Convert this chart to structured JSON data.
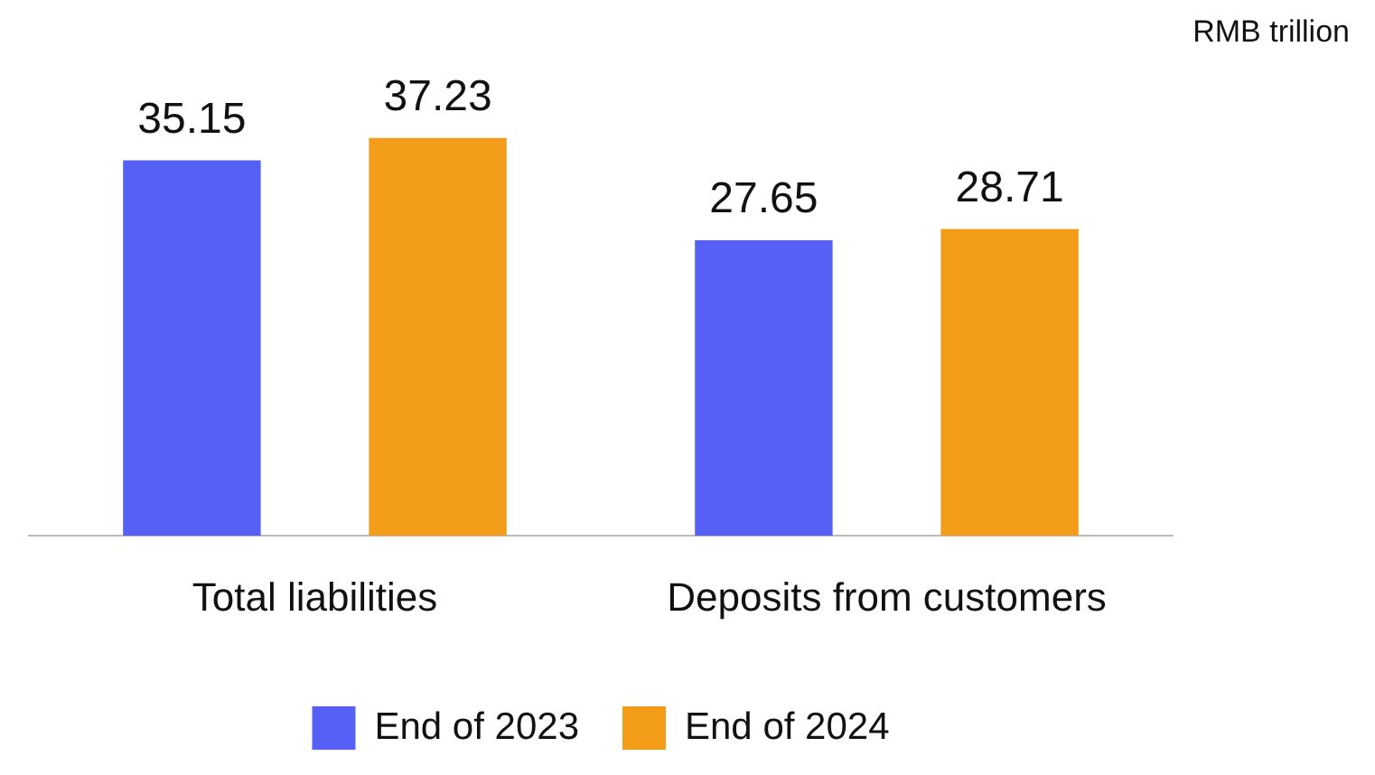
{
  "chart_data": {
    "type": "bar",
    "annotations": [
      "RMB trillion"
    ],
    "categories": [
      "Total liabilities",
      "Deposits from customers"
    ],
    "series": [
      {
        "name": "End of 2023",
        "color": "#5760f5",
        "values": [
          35.15,
          27.65
        ]
      },
      {
        "name": "End of 2024",
        "color": "#f39c19",
        "values": [
          37.23,
          28.71
        ]
      }
    ],
    "data_labels": true,
    "legend": "bottom",
    "grid": false
  }
}
